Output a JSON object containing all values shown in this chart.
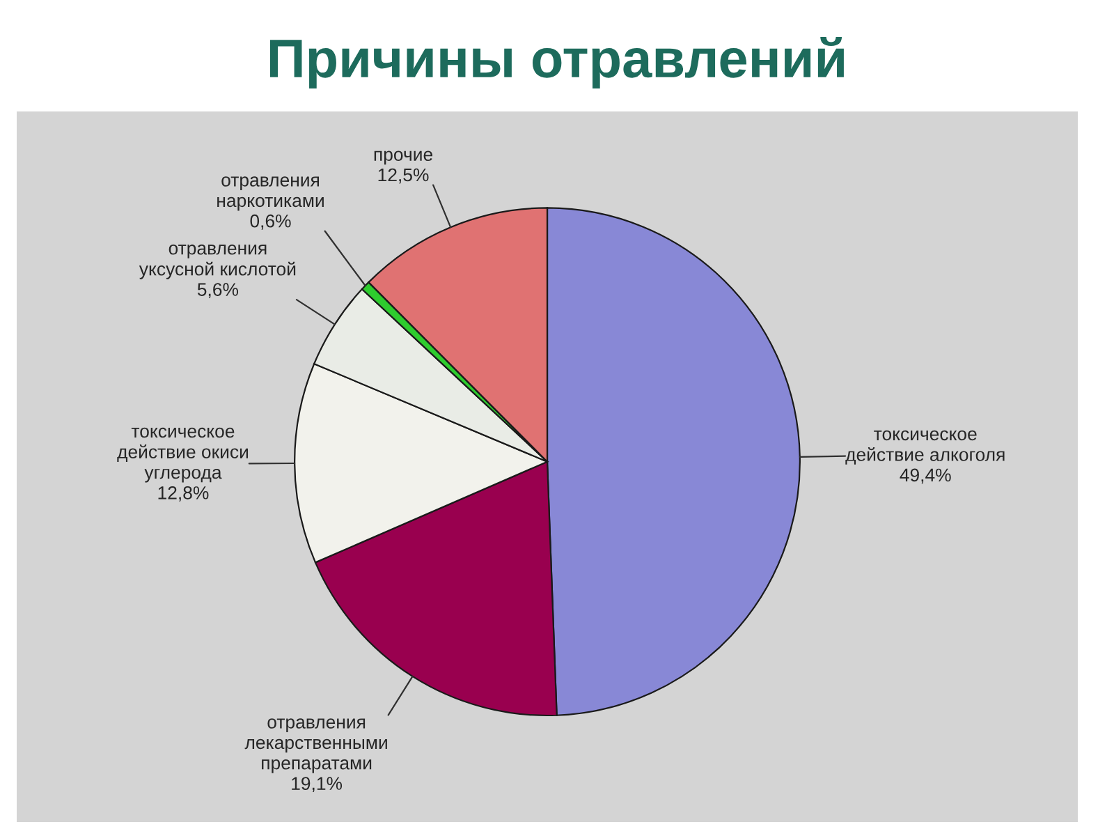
{
  "chart_data": {
    "type": "pie",
    "title": "Причины отравлений",
    "categories": [
      "токсическое\nдействие алкоголя",
      "отравления\nлекарственными\nпрепаратами",
      "токсическое\nдействие окиси\nуглерода",
      "отравления\nуксусной кислотой",
      "отравления\nнаркотиками",
      "прочие"
    ],
    "values": [
      49.4,
      19.1,
      12.8,
      5.6,
      0.6,
      12.5
    ],
    "colors": [
      "#8888d6",
      "#99004f",
      "#f2f2ec",
      "#e9ece6",
      "#2ecc2e",
      "#e07272"
    ],
    "value_labels": [
      "49,4%",
      "19,1%",
      "12,8%",
      "5,6%",
      "0,6%",
      "12,5%"
    ]
  }
}
